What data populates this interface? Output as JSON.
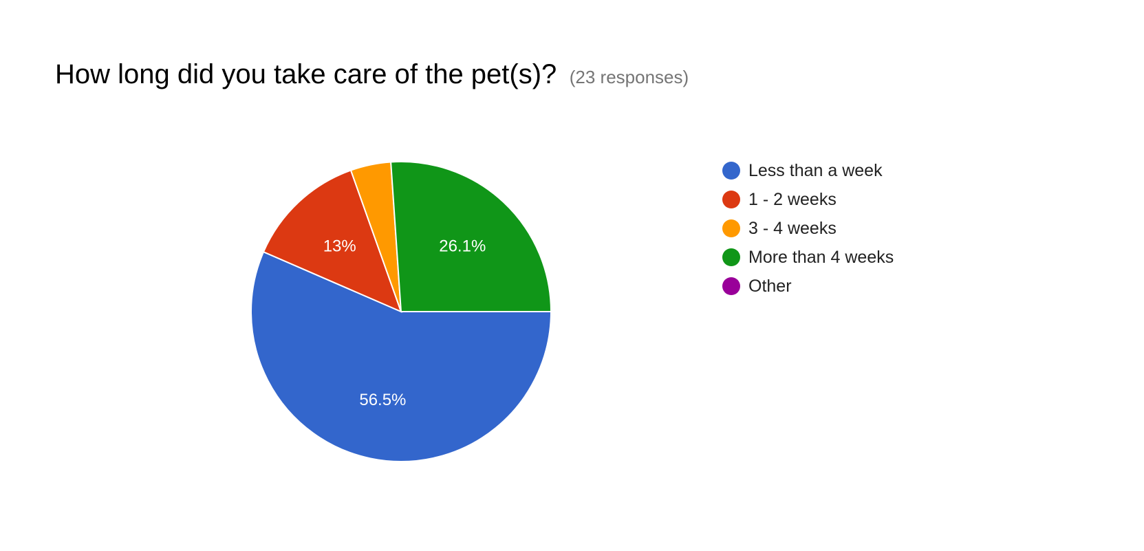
{
  "header": {
    "title": "How long did you take care of the pet(s)?",
    "responses": "(23 responses)"
  },
  "chart_data": {
    "type": "pie",
    "title": "How long did you take care of the pet(s)?",
    "total_responses": 23,
    "categories": [
      "Less than a week",
      "1 - 2 weeks",
      "3 - 4 weeks",
      "More than 4 weeks",
      "Other"
    ],
    "values": [
      56.5,
      13,
      4.3,
      26.1,
      0
    ],
    "counts": [
      13,
      3,
      1,
      6,
      0
    ],
    "colors": [
      "#3366cc",
      "#dc3912",
      "#ff9900",
      "#109618",
      "#990099"
    ],
    "data_labels": [
      "56.5%",
      "13%",
      "",
      "26.1%",
      ""
    ],
    "legend_position": "right"
  }
}
